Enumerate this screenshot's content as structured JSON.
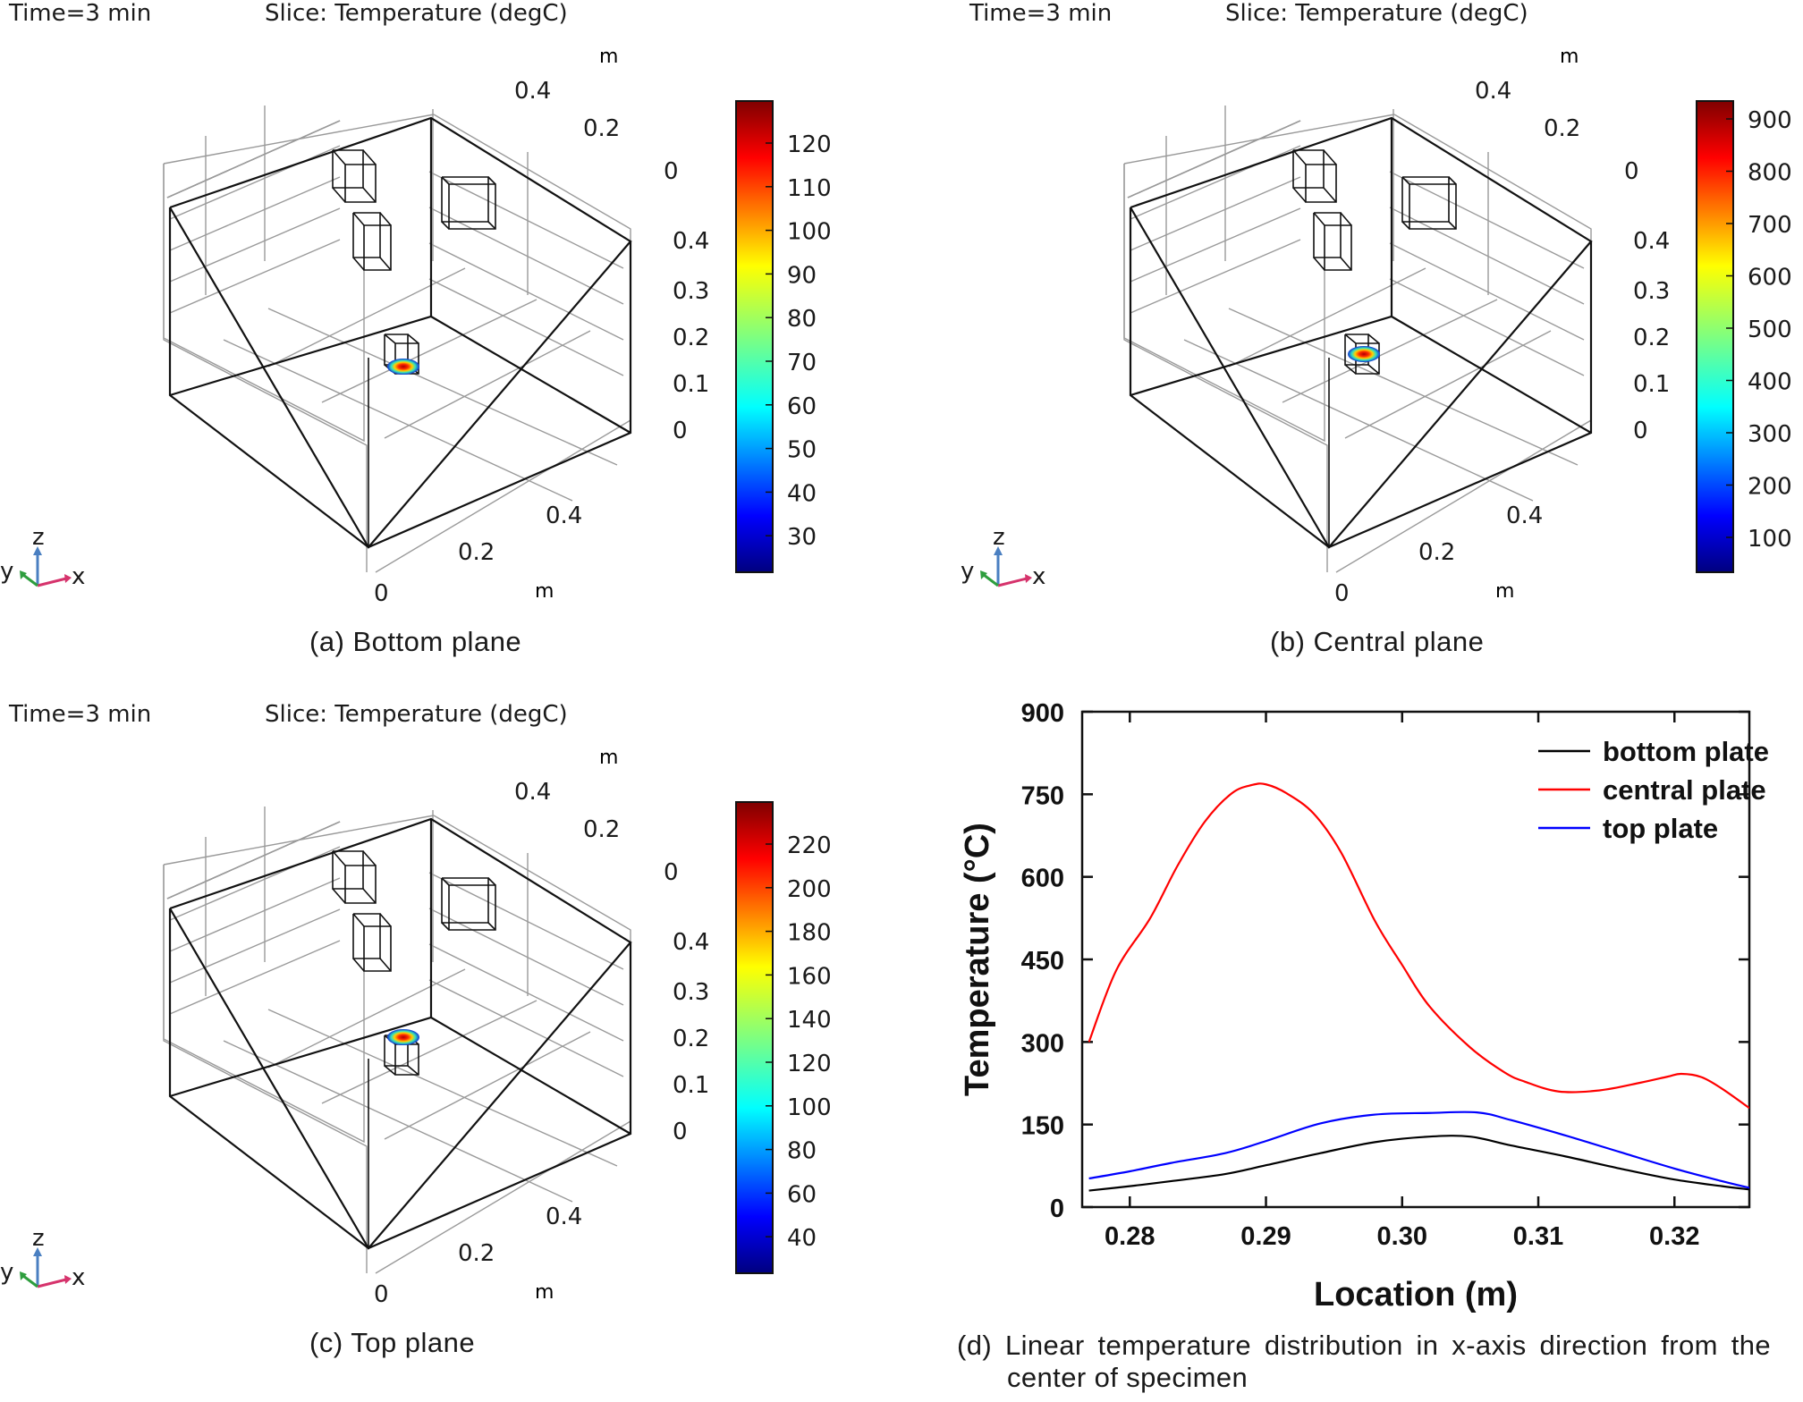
{
  "panels": [
    {
      "id": "a",
      "time": "Time=3 min",
      "slice": "Slice: Temperature (degC)",
      "caption": "(a) Bottom plane",
      "colorbar_ticks": [
        "120",
        "110",
        "100",
        "90",
        "80",
        "70",
        "60",
        "50",
        "40",
        "30"
      ],
      "hot_face": "bottom"
    },
    {
      "id": "b",
      "time": "Time=3 min",
      "slice": "Slice: Temperature (degC)",
      "caption": "(b) Central plane",
      "colorbar_ticks": [
        "900",
        "800",
        "700",
        "600",
        "500",
        "400",
        "300",
        "200",
        "100"
      ],
      "hot_face": "center"
    },
    {
      "id": "c",
      "time": "Time=3 min",
      "slice": "Slice: Temperature (degC)",
      "caption": "(c) Top plane",
      "colorbar_ticks": [
        "220",
        "200",
        "180",
        "160",
        "140",
        "120",
        "100",
        "80",
        "60",
        "40"
      ],
      "hot_face": "top"
    }
  ],
  "axes3d": {
    "unit": "m",
    "y_ticks": [
      "0.4",
      "0.2",
      "0"
    ],
    "z_ticks": [
      "0.4",
      "0.3",
      "0.2",
      "0.1",
      "0"
    ],
    "x_ticks": [
      "0.4",
      "0.2",
      "0"
    ],
    "triad": {
      "x": "x",
      "y": "y",
      "z": "z"
    }
  },
  "colors": {
    "x_arrow": "#d6336c",
    "y_arrow": "#2e9e3e",
    "z_arrow": "#4a7fc1",
    "grid": "#9a9a9a"
  },
  "chart_data": {
    "type": "line",
    "xlabel": "Location (m)",
    "ylabel": "Temperature (°C)",
    "xlim": [
      0.2765,
      0.3255
    ],
    "ylim": [
      0,
      900
    ],
    "xticks": [
      0.28,
      0.29,
      0.3,
      0.31,
      0.32
    ],
    "xtick_labels": [
      "0.28",
      "0.29",
      "0.30",
      "0.31",
      "0.32"
    ],
    "yticks": [
      0,
      150,
      300,
      450,
      600,
      750,
      900
    ],
    "ytick_labels": [
      "0",
      "150",
      "300",
      "450",
      "600",
      "750",
      "900"
    ],
    "legend_position": "top-right",
    "series": [
      {
        "name": "bottom plate",
        "color": "#000000",
        "x": [
          0.277,
          0.28,
          0.283,
          0.287,
          0.29,
          0.294,
          0.298,
          0.302,
          0.305,
          0.308,
          0.312,
          0.316,
          0.32,
          0.3235,
          0.3255
        ],
        "y": [
          30,
          38,
          47,
          60,
          76,
          98,
          118,
          128,
          128,
          112,
          92,
          70,
          50,
          38,
          32
        ]
      },
      {
        "name": "central plate",
        "color": "#ff0000",
        "x": [
          0.277,
          0.279,
          0.2815,
          0.2835,
          0.2855,
          0.2875,
          0.289,
          0.29,
          0.2915,
          0.2935,
          0.2955,
          0.298,
          0.3,
          0.302,
          0.305,
          0.3075,
          0.309,
          0.3115,
          0.3145,
          0.3175,
          0.3195,
          0.3205,
          0.322,
          0.3235,
          0.3255
        ],
        "y": [
          300,
          430,
          525,
          620,
          700,
          752,
          767,
          768,
          752,
          715,
          645,
          520,
          440,
          365,
          290,
          245,
          228,
          210,
          212,
          226,
          237,
          242,
          236,
          215,
          180
        ]
      },
      {
        "name": "top plate",
        "color": "#0000ff",
        "x": [
          0.277,
          0.28,
          0.283,
          0.287,
          0.29,
          0.294,
          0.298,
          0.302,
          0.3055,
          0.308,
          0.312,
          0.316,
          0.32,
          0.3235,
          0.3255
        ],
        "y": [
          52,
          65,
          80,
          98,
          120,
          152,
          168,
          171,
          172,
          158,
          130,
          100,
          70,
          47,
          35
        ]
      }
    ]
  }
}
